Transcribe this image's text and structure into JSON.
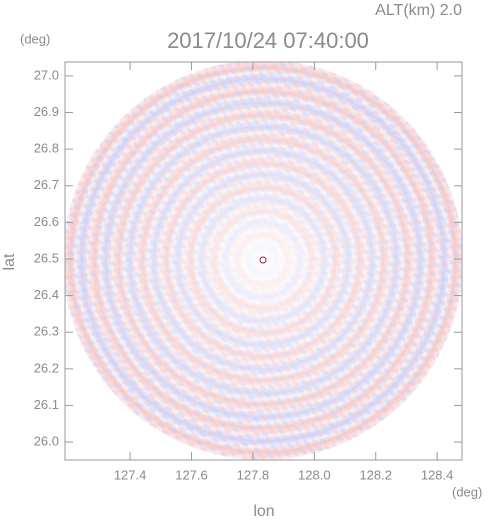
{
  "chart_data": {
    "type": "radar-field",
    "annotation": "ALT(km) 2.0",
    "title": "2017/10/24 07:40:00",
    "x_label": "lon",
    "y_label": "lat",
    "x_unit": "(deg)",
    "y_unit": "(deg)",
    "xlim": [
      127.188,
      128.481
    ],
    "ylim": [
      25.951,
      27.038
    ],
    "xticks": [
      127.4,
      127.6,
      127.8,
      {
        "value": 128,
        "label": "128.0"
      },
      128.2,
      128.4
    ],
    "yticks": [
      {
        "value": 26,
        "label": "26.0"
      },
      26.1,
      26.2,
      26.3,
      26.4,
      26.5,
      26.6,
      26.7,
      26.8,
      26.9,
      {
        "value": 27,
        "label": "27.0"
      }
    ]
  }
}
